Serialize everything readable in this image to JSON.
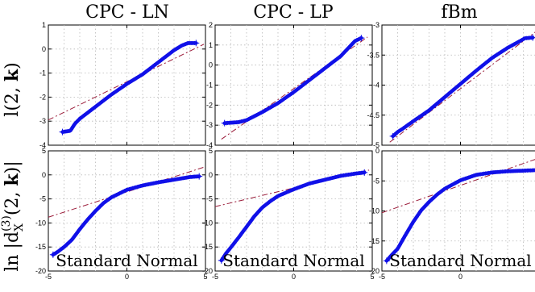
{
  "chart_data": {
    "type": "scatter",
    "plot_kind": "normal probability (Q-Q) plot, 2 rows x 3 columns",
    "column_titles": [
      "CPC - LN",
      "CPC - LP",
      "fBm"
    ],
    "row_labels": [
      "l(2, k)",
      "ln |d_X^(3)(2, k)|"
    ],
    "row_label_parts": {
      "top": {
        "base": "l(2, ",
        "bold": "k",
        "tail": ")"
      },
      "bottom": {
        "ln": "ln |d",
        "sub": "X",
        "sup": "(3)",
        "args": "(2, ",
        "bold": "k",
        "tail": ")|"
      }
    },
    "xlabel": "Standard Normal",
    "xlim": [
      -5,
      5
    ],
    "x_ticks": [
      "-5",
      "0",
      "5"
    ],
    "grid": true,
    "colors": {
      "points": "#1010e8",
      "reference_line": "#9b1c3a",
      "grid": "#b8b8b8"
    },
    "panels": [
      {
        "row": 0,
        "col": 0,
        "ylim": [
          -4,
          1
        ],
        "y_ticks": [
          "1",
          "0",
          "-1",
          "-2",
          "-3",
          "-4"
        ],
        "points": [
          [
            -4.1,
            -3.45
          ],
          [
            -3.6,
            -3.4
          ],
          [
            -3.3,
            -3.1
          ],
          [
            -3,
            -2.9
          ],
          [
            -2,
            -2.4
          ],
          [
            -1,
            -1.9
          ],
          [
            0,
            -1.45
          ],
          [
            1,
            -1.05
          ],
          [
            2,
            -0.55
          ],
          [
            3,
            -0.05
          ],
          [
            3.5,
            0.15
          ],
          [
            3.9,
            0.25
          ],
          [
            4.4,
            0.25
          ]
        ],
        "reference_line": {
          "x": [
            -5,
            4.9
          ],
          "y": [
            -2.95,
            0.2
          ]
        }
      },
      {
        "row": 0,
        "col": 1,
        "ylim": [
          -4,
          2
        ],
        "y_ticks": [
          "2",
          "1",
          "0",
          "-1",
          "-2",
          "-3",
          "-4"
        ],
        "points": [
          [
            -4.4,
            -2.9
          ],
          [
            -3.5,
            -2.85
          ],
          [
            -3,
            -2.75
          ],
          [
            -2,
            -2.35
          ],
          [
            -1,
            -1.9
          ],
          [
            0,
            -1.35
          ],
          [
            1,
            -0.75
          ],
          [
            2,
            -0.15
          ],
          [
            3,
            0.45
          ],
          [
            3.6,
            0.95
          ],
          [
            3.9,
            1.2
          ],
          [
            4.3,
            1.35
          ]
        ],
        "reference_line": {
          "x": [
            -4.6,
            4.7
          ],
          "y": [
            -3.7,
            1.4
          ]
        }
      },
      {
        "row": 0,
        "col": 2,
        "ylim": [
          -5,
          -3
        ],
        "y_ticks": [
          "-3",
          "-3.5",
          "-4",
          "-4.5",
          "-5"
        ],
        "points": [
          [
            -4.3,
            -4.85
          ],
          [
            -4,
            -4.78
          ],
          [
            -3.7,
            -4.73
          ],
          [
            -3,
            -4.6
          ],
          [
            -2,
            -4.42
          ],
          [
            -1,
            -4.2
          ],
          [
            0,
            -3.98
          ],
          [
            1,
            -3.76
          ],
          [
            2,
            -3.55
          ],
          [
            3,
            -3.38
          ],
          [
            3.7,
            -3.28
          ],
          [
            4.1,
            -3.22
          ],
          [
            4.6,
            -3.21
          ]
        ],
        "reference_line": {
          "x": [
            -4.5,
            5
          ],
          "y": [
            -4.95,
            -3.07
          ]
        }
      },
      {
        "row": 1,
        "col": 0,
        "ylim": [
          -20,
          5
        ],
        "y_ticks": [
          "5",
          "0",
          "-5",
          "-10",
          "-15",
          "-20"
        ],
        "points": [
          [
            -4.7,
            -16.6
          ],
          [
            -4.4,
            -16
          ],
          [
            -4,
            -15
          ],
          [
            -3.5,
            -13.5
          ],
          [
            -3,
            -11.3
          ],
          [
            -2.5,
            -9.3
          ],
          [
            -2,
            -7.5
          ],
          [
            -1.5,
            -5.9
          ],
          [
            -1,
            -4.7
          ],
          [
            0,
            -3.1
          ],
          [
            1,
            -2.2
          ],
          [
            2,
            -1.55
          ],
          [
            3,
            -1
          ],
          [
            4,
            -0.45
          ],
          [
            4.6,
            -0.3
          ]
        ],
        "reference_line": {
          "x": [
            -5,
            5
          ],
          "y": [
            -8.8,
            1.7
          ]
        }
      },
      {
        "row": 1,
        "col": 1,
        "ylim": [
          -20,
          5
        ],
        "y_ticks": [
          "5",
          "0",
          "-5",
          "-10",
          "-15",
          "-20"
        ],
        "points": [
          [
            -4.6,
            -17.8
          ],
          [
            -4.3,
            -16.3
          ],
          [
            -4,
            -15.1
          ],
          [
            -3.5,
            -13
          ],
          [
            -3,
            -10.8
          ],
          [
            -2.5,
            -8.6
          ],
          [
            -2,
            -6.8
          ],
          [
            -1.5,
            -5.5
          ],
          [
            -1,
            -4.4
          ],
          [
            0,
            -3
          ],
          [
            1,
            -1.8
          ],
          [
            2,
            -1
          ],
          [
            3,
            -0.2
          ],
          [
            4,
            0.3
          ],
          [
            4.5,
            0.5
          ]
        ],
        "reference_line": {
          "x": [
            -5,
            4.8
          ],
          "y": [
            -6.6,
            1
          ]
        }
      },
      {
        "row": 1,
        "col": 2,
        "ylim": [
          -20,
          0
        ],
        "y_ticks": [
          "0",
          "-5",
          "-10",
          "-15",
          "-20"
        ],
        "points": [
          [
            -4.7,
            -18.3
          ],
          [
            -4.4,
            -17.4
          ],
          [
            -4,
            -16.3
          ],
          [
            -3.5,
            -14
          ],
          [
            -3,
            -11.8
          ],
          [
            -2.5,
            -9.9
          ],
          [
            -2,
            -8.5
          ],
          [
            -1.5,
            -7.3
          ],
          [
            -1,
            -6.3
          ],
          [
            0,
            -4.9
          ],
          [
            1,
            -4
          ],
          [
            2,
            -3.6
          ],
          [
            3,
            -3.4
          ],
          [
            4,
            -3.3
          ],
          [
            4.9,
            -3.2
          ]
        ],
        "reference_line": {
          "x": [
            -5,
            5
          ],
          "y": [
            -10.3,
            -1.2
          ]
        }
      }
    ]
  }
}
